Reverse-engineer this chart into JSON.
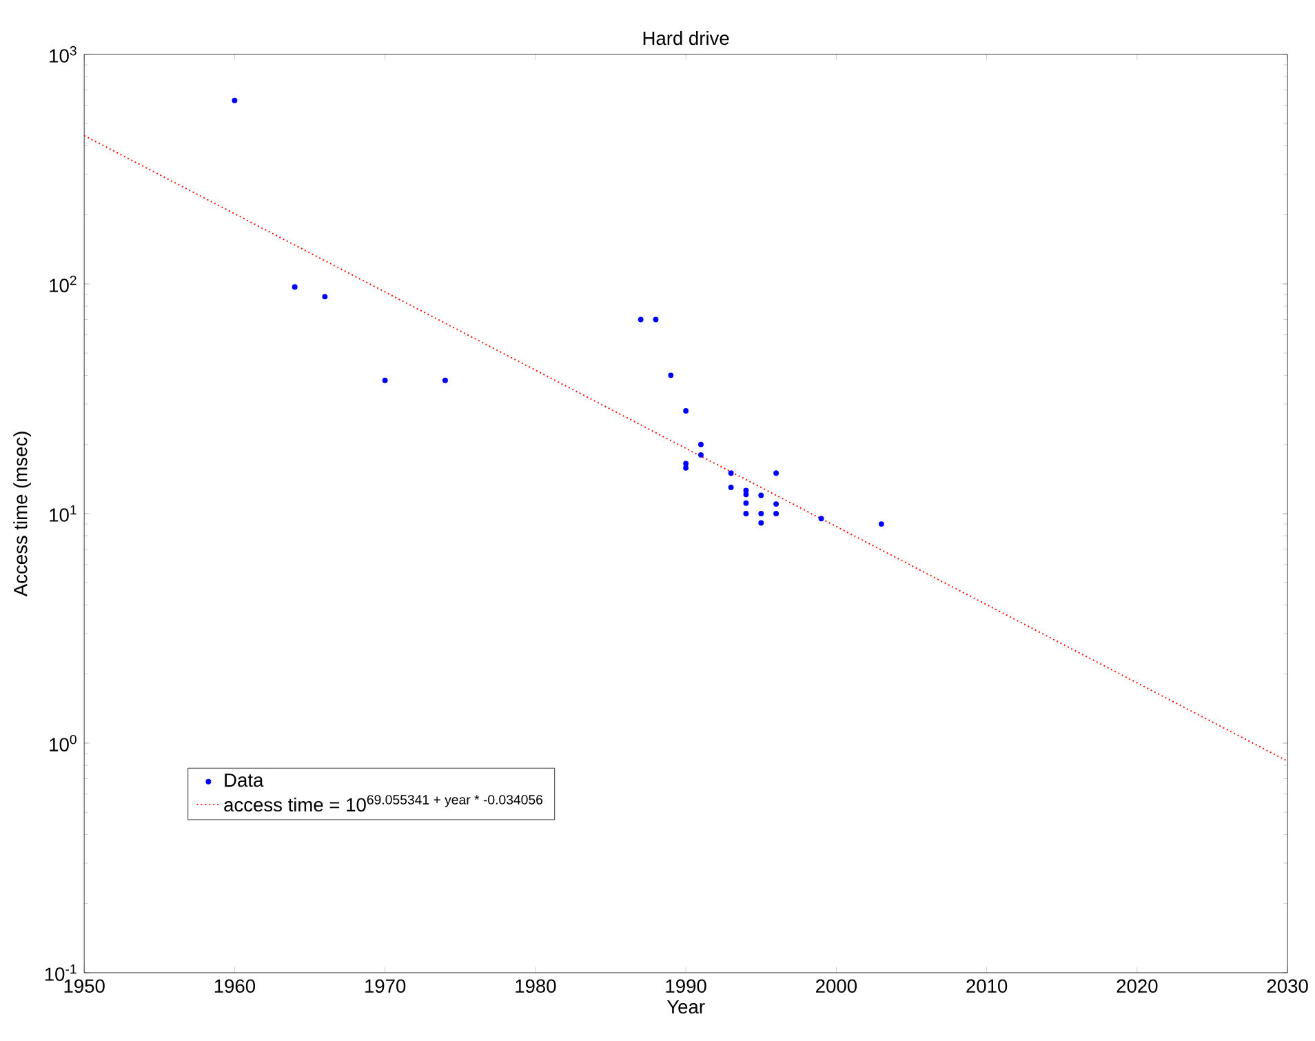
{
  "chart_data": {
    "type": "scatter",
    "title": "Hard drive",
    "xlabel": "Year",
    "ylabel": "Access time (msec)",
    "log": "y",
    "legend": "bottom left",
    "xlim": [
      1950,
      2030
    ],
    "xticks": [
      1950,
      1960,
      1970,
      1980,
      1990,
      2000,
      2010,
      2020,
      2030
    ],
    "ylim": [
      0.1,
      1000
    ],
    "yticks": [
      {
        "value": 0.1,
        "label": "10$^{-1}$"
      },
      {
        "value": 1,
        "label": "10$^{0}$"
      },
      {
        "value": 10,
        "label": "10$^{1}$"
      },
      {
        "value": 100,
        "label": "10$^{2}$"
      },
      {
        "value": 1000,
        "label": "10$^{3}$"
      }
    ],
    "series": [
      {
        "name": "Data",
        "type": "scatter",
        "marker": "circle",
        "color": "#0000ff",
        "x": [
          1960,
          1964,
          1966,
          1970,
          1974,
          1987,
          1988,
          1989,
          1990,
          1990,
          1990,
          1991,
          1991,
          1993,
          1993,
          1994,
          1994,
          1994,
          1994,
          1995,
          1995,
          1995,
          1996,
          1996,
          1996,
          1999,
          2003
        ],
        "values": [
          630,
          97,
          88,
          38,
          38,
          70,
          70,
          40,
          28,
          16.5,
          15.8,
          20,
          18,
          15,
          13,
          12.6,
          12.1,
          11.1,
          10,
          12,
          10,
          9.1,
          15,
          11,
          10,
          9.5,
          9
        ]
      },
      {
        "name": "access time = 10$^{69.055341 + year * -0.034056}$",
        "type": "line",
        "marker": "none",
        "line_style": "dotted",
        "color": "#ff0000",
        "x": [
          1950,
          2030
        ],
        "values": [
          442.7,
          0.835
        ]
      }
    ]
  }
}
